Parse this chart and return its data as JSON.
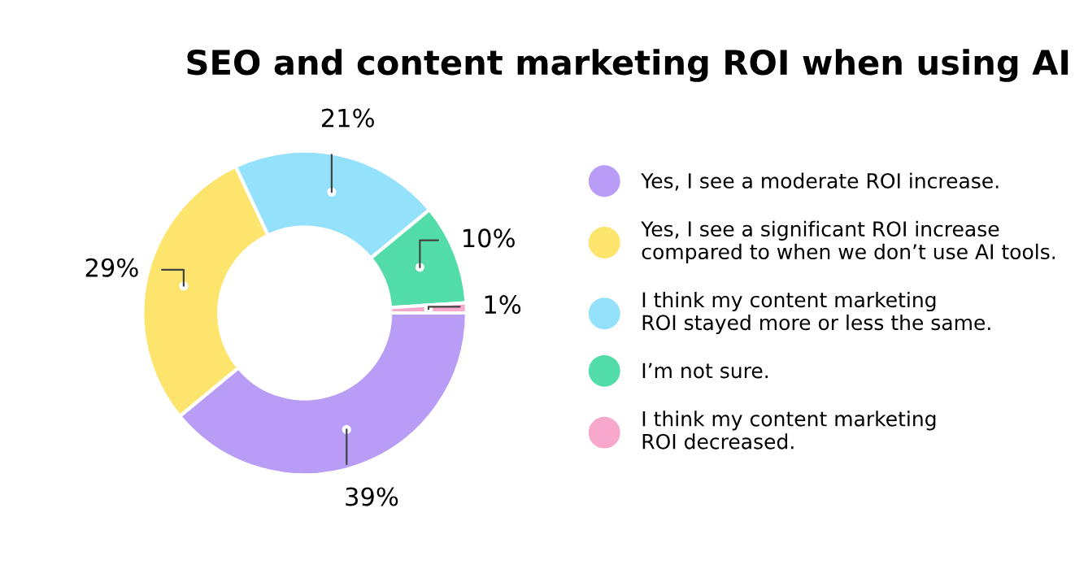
{
  "chart_data": {
    "type": "donut",
    "title": "SEO and content marketing ROI when using AI",
    "categories": [
      "Yes, I see a moderate ROI increase.",
      "Yes, I see a significant ROI increase\ncompared to when we don’t use AI tools.",
      "I think my content marketing\nROI stayed more or less the same.",
      "I’m not sure.",
      "I think my content marketing\nROI decreased."
    ],
    "values": [
      39,
      29,
      21,
      10,
      1
    ],
    "colors": [
      "#b89cf6",
      "#fde46c",
      "#93e1fa",
      "#52dca9",
      "#f7a8cb"
    ],
    "value_labels": [
      "39%",
      "29%",
      "21%",
      "10%",
      "1%"
    ],
    "legend": "right"
  }
}
